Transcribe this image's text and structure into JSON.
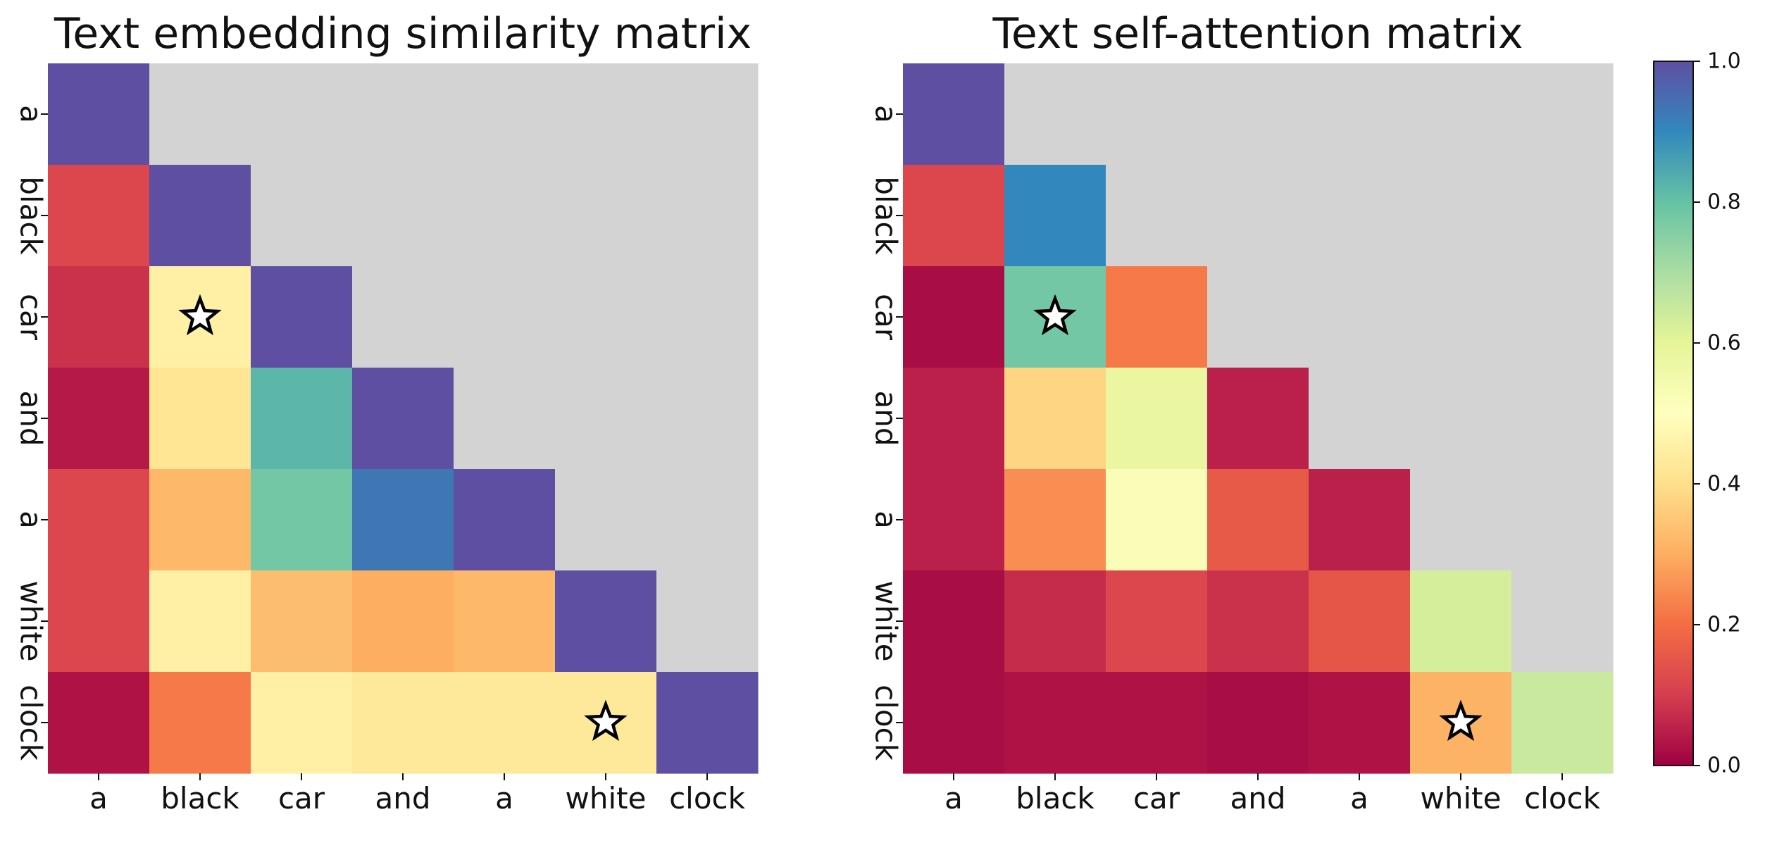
{
  "tokens": [
    "a",
    "black",
    "car",
    "and",
    "a",
    "white",
    "clock"
  ],
  "colorbar": {
    "min": 0.0,
    "max": 1.0,
    "tick_values": [
      0.0,
      0.2,
      0.4,
      0.6,
      0.8,
      1.0
    ],
    "tick_labels": [
      "0.0",
      "0.2",
      "0.4",
      "0.6",
      "0.8",
      "1.0"
    ],
    "colormap": "Spectral"
  },
  "masked_color": "#d3d3d3",
  "star_marker": "star-icon",
  "chart_data": [
    {
      "type": "heatmap",
      "title": "Text embedding similarity matrix",
      "x": [
        "a",
        "black",
        "car",
        "and",
        "a",
        "white",
        "clock"
      ],
      "y": [
        "a",
        "black",
        "car",
        "and",
        "a",
        "white",
        "clock"
      ],
      "mask": "upper-triangle",
      "values": [
        [
          1.0
        ],
        [
          0.12,
          1.0
        ],
        [
          0.08,
          0.45,
          1.0
        ],
        [
          0.04,
          0.42,
          0.82,
          1.0
        ],
        [
          0.12,
          0.32,
          0.78,
          0.93,
          1.0
        ],
        [
          0.12,
          0.45,
          0.33,
          0.3,
          0.32,
          1.0
        ],
        [
          0.03,
          0.22,
          0.45,
          0.43,
          0.43,
          0.43,
          1.0
        ]
      ],
      "stars": [
        [
          2,
          1
        ],
        [
          6,
          5
        ]
      ]
    },
    {
      "type": "heatmap",
      "title": "Text self-attention matrix",
      "x": [
        "a",
        "black",
        "car",
        "and",
        "a",
        "white",
        "clock"
      ],
      "y": [
        "a",
        "black",
        "car",
        "and",
        "a",
        "white",
        "clock"
      ],
      "mask": "upper-triangle",
      "values": [
        [
          1.0
        ],
        [
          0.12,
          0.9
        ],
        [
          0.02,
          0.78,
          0.22
        ],
        [
          0.05,
          0.38,
          0.58,
          0.05
        ],
        [
          0.05,
          0.25,
          0.52,
          0.16,
          0.05
        ],
        [
          0.02,
          0.07,
          0.12,
          0.08,
          0.15,
          0.63
        ],
        [
          0.02,
          0.03,
          0.03,
          0.02,
          0.03,
          0.31,
          0.65
        ]
      ],
      "stars": [
        [
          2,
          1
        ],
        [
          6,
          5
        ]
      ]
    }
  ]
}
